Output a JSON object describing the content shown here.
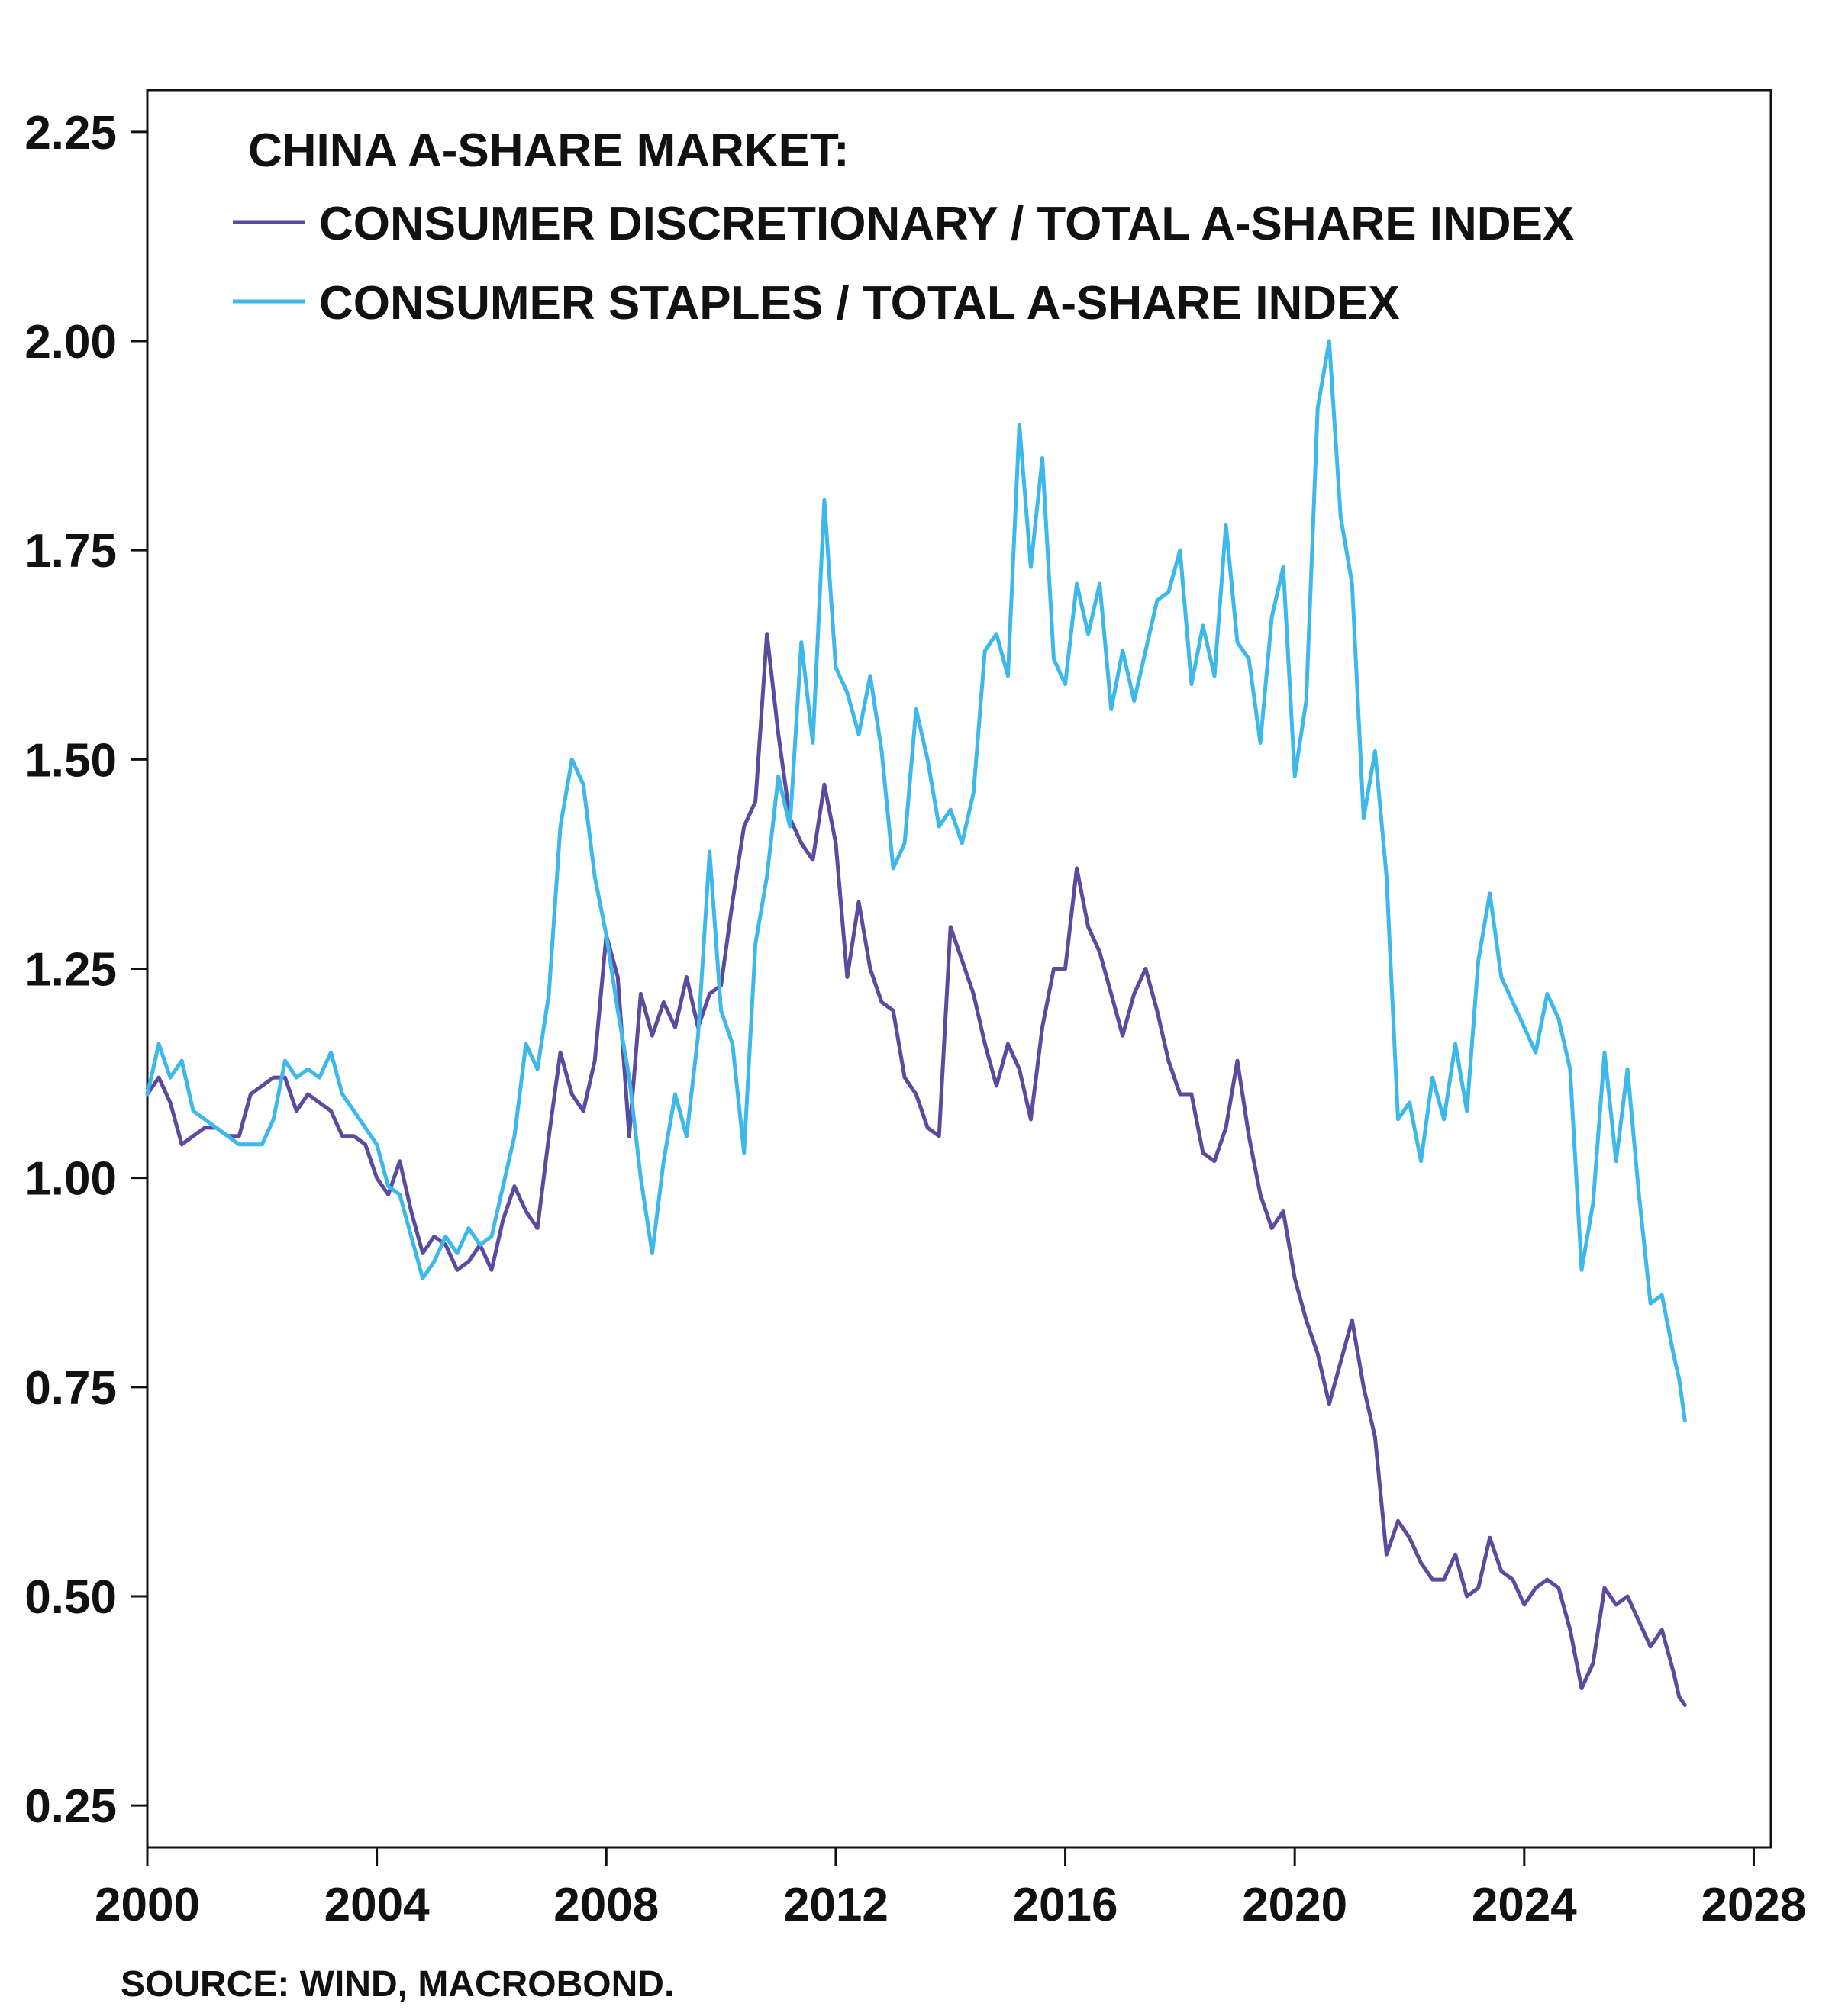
{
  "chart_data": {
    "type": "line",
    "legend_title": "CHINA A-SHARE MARKET:",
    "legend_position": "top-left",
    "source": "SOURCE: WIND, MACROBOND.",
    "xlim": [
      2000,
      2028.3
    ],
    "ylim": [
      0.2,
      2.3
    ],
    "x_ticks": [
      2000,
      2004,
      2008,
      2012,
      2016,
      2020,
      2024,
      2028
    ],
    "y_ticks": [
      "0.25",
      "0.50",
      "0.75",
      "1.00",
      "1.25",
      "1.50",
      "1.75",
      "2.00",
      "2.25"
    ],
    "grid": false,
    "series": [
      {
        "name": "CONSUMER DISCRETIONARY / TOTAL A-SHARE INDEX",
        "color": "#5b4a9e",
        "points": [
          [
            2000.0,
            1.1
          ],
          [
            2000.2,
            1.12
          ],
          [
            2000.4,
            1.09
          ],
          [
            2000.6,
            1.04
          ],
          [
            2000.8,
            1.05
          ],
          [
            2001.0,
            1.06
          ],
          [
            2001.2,
            1.06
          ],
          [
            2001.4,
            1.05
          ],
          [
            2001.6,
            1.05
          ],
          [
            2001.8,
            1.1
          ],
          [
            2002.0,
            1.11
          ],
          [
            2002.2,
            1.12
          ],
          [
            2002.4,
            1.12
          ],
          [
            2002.6,
            1.08
          ],
          [
            2002.8,
            1.1
          ],
          [
            2003.0,
            1.09
          ],
          [
            2003.2,
            1.08
          ],
          [
            2003.4,
            1.05
          ],
          [
            2003.6,
            1.05
          ],
          [
            2003.8,
            1.04
          ],
          [
            2004.0,
            1.0
          ],
          [
            2004.2,
            0.98
          ],
          [
            2004.4,
            1.02
          ],
          [
            2004.6,
            0.96
          ],
          [
            2004.8,
            0.91
          ],
          [
            2005.0,
            0.93
          ],
          [
            2005.2,
            0.92
          ],
          [
            2005.4,
            0.89
          ],
          [
            2005.6,
            0.9
          ],
          [
            2005.8,
            0.92
          ],
          [
            2006.0,
            0.89
          ],
          [
            2006.2,
            0.95
          ],
          [
            2006.4,
            0.99
          ],
          [
            2006.6,
            0.96
          ],
          [
            2006.8,
            0.94
          ],
          [
            2007.0,
            1.05
          ],
          [
            2007.2,
            1.15
          ],
          [
            2007.4,
            1.1
          ],
          [
            2007.6,
            1.08
          ],
          [
            2007.8,
            1.14
          ],
          [
            2008.0,
            1.29
          ],
          [
            2008.2,
            1.24
          ],
          [
            2008.4,
            1.05
          ],
          [
            2008.6,
            1.22
          ],
          [
            2008.8,
            1.17
          ],
          [
            2009.0,
            1.21
          ],
          [
            2009.2,
            1.18
          ],
          [
            2009.4,
            1.24
          ],
          [
            2009.6,
            1.18
          ],
          [
            2009.8,
            1.22
          ],
          [
            2010.0,
            1.23
          ],
          [
            2010.2,
            1.33
          ],
          [
            2010.4,
            1.42
          ],
          [
            2010.6,
            1.45
          ],
          [
            2010.8,
            1.65
          ],
          [
            2011.0,
            1.53
          ],
          [
            2011.2,
            1.43
          ],
          [
            2011.4,
            1.4
          ],
          [
            2011.6,
            1.38
          ],
          [
            2011.8,
            1.47
          ],
          [
            2012.0,
            1.4
          ],
          [
            2012.2,
            1.24
          ],
          [
            2012.4,
            1.33
          ],
          [
            2012.6,
            1.25
          ],
          [
            2012.8,
            1.21
          ],
          [
            2013.0,
            1.2
          ],
          [
            2013.2,
            1.12
          ],
          [
            2013.4,
            1.1
          ],
          [
            2013.6,
            1.06
          ],
          [
            2013.8,
            1.05
          ],
          [
            2014.0,
            1.3
          ],
          [
            2014.2,
            1.26
          ],
          [
            2014.4,
            1.22
          ],
          [
            2014.6,
            1.16
          ],
          [
            2014.8,
            1.11
          ],
          [
            2015.0,
            1.16
          ],
          [
            2015.2,
            1.13
          ],
          [
            2015.4,
            1.07
          ],
          [
            2015.6,
            1.18
          ],
          [
            2015.8,
            1.25
          ],
          [
            2016.0,
            1.25
          ],
          [
            2016.2,
            1.37
          ],
          [
            2016.4,
            1.3
          ],
          [
            2016.6,
            1.27
          ],
          [
            2016.8,
            1.22
          ],
          [
            2017.0,
            1.17
          ],
          [
            2017.2,
            1.22
          ],
          [
            2017.4,
            1.25
          ],
          [
            2017.6,
            1.2
          ],
          [
            2017.8,
            1.14
          ],
          [
            2018.0,
            1.1
          ],
          [
            2018.2,
            1.1
          ],
          [
            2018.4,
            1.03
          ],
          [
            2018.6,
            1.02
          ],
          [
            2018.8,
            1.06
          ],
          [
            2019.0,
            1.14
          ],
          [
            2019.2,
            1.05
          ],
          [
            2019.4,
            0.98
          ],
          [
            2019.6,
            0.94
          ],
          [
            2019.8,
            0.96
          ],
          [
            2020.0,
            0.88
          ],
          [
            2020.2,
            0.83
          ],
          [
            2020.4,
            0.79
          ],
          [
            2020.6,
            0.73
          ],
          [
            2020.8,
            0.78
          ],
          [
            2021.0,
            0.83
          ],
          [
            2021.2,
            0.75
          ],
          [
            2021.4,
            0.69
          ],
          [
            2021.6,
            0.55
          ],
          [
            2021.8,
            0.59
          ],
          [
            2022.0,
            0.57
          ],
          [
            2022.2,
            0.54
          ],
          [
            2022.4,
            0.52
          ],
          [
            2022.6,
            0.52
          ],
          [
            2022.8,
            0.55
          ],
          [
            2023.0,
            0.5
          ],
          [
            2023.2,
            0.51
          ],
          [
            2023.4,
            0.57
          ],
          [
            2023.6,
            0.53
          ],
          [
            2023.8,
            0.52
          ],
          [
            2024.0,
            0.49
          ],
          [
            2024.2,
            0.51
          ],
          [
            2024.4,
            0.52
          ],
          [
            2024.6,
            0.51
          ],
          [
            2024.8,
            0.46
          ],
          [
            2025.0,
            0.39
          ],
          [
            2025.2,
            0.42
          ],
          [
            2025.4,
            0.51
          ],
          [
            2025.6,
            0.49
          ],
          [
            2025.8,
            0.5
          ],
          [
            2026.0,
            0.47
          ],
          [
            2026.2,
            0.44
          ],
          [
            2026.4,
            0.46
          ],
          [
            2026.6,
            0.41
          ],
          [
            2026.7,
            0.38
          ],
          [
            2026.8,
            0.37
          ]
        ]
      },
      {
        "name": "CONSUMER STAPLES / TOTAL A-SHARE INDEX",
        "color": "#3db8ea",
        "points": [
          [
            2000.0,
            1.1
          ],
          [
            2000.2,
            1.16
          ],
          [
            2000.4,
            1.12
          ],
          [
            2000.6,
            1.14
          ],
          [
            2000.8,
            1.08
          ],
          [
            2001.0,
            1.07
          ],
          [
            2001.2,
            1.06
          ],
          [
            2001.4,
            1.05
          ],
          [
            2001.6,
            1.04
          ],
          [
            2001.8,
            1.04
          ],
          [
            2002.0,
            1.04
          ],
          [
            2002.2,
            1.07
          ],
          [
            2002.4,
            1.14
          ],
          [
            2002.6,
            1.12
          ],
          [
            2002.8,
            1.13
          ],
          [
            2003.0,
            1.12
          ],
          [
            2003.2,
            1.15
          ],
          [
            2003.4,
            1.1
          ],
          [
            2003.6,
            1.08
          ],
          [
            2003.8,
            1.06
          ],
          [
            2004.0,
            1.04
          ],
          [
            2004.2,
            0.99
          ],
          [
            2004.4,
            0.98
          ],
          [
            2004.6,
            0.93
          ],
          [
            2004.8,
            0.88
          ],
          [
            2005.0,
            0.9
          ],
          [
            2005.2,
            0.93
          ],
          [
            2005.4,
            0.91
          ],
          [
            2005.6,
            0.94
          ],
          [
            2005.8,
            0.92
          ],
          [
            2006.0,
            0.93
          ],
          [
            2006.2,
            0.99
          ],
          [
            2006.4,
            1.05
          ],
          [
            2006.6,
            1.16
          ],
          [
            2006.8,
            1.13
          ],
          [
            2007.0,
            1.22
          ],
          [
            2007.2,
            1.42
          ],
          [
            2007.4,
            1.5
          ],
          [
            2007.6,
            1.47
          ],
          [
            2007.8,
            1.36
          ],
          [
            2008.0,
            1.29
          ],
          [
            2008.2,
            1.2
          ],
          [
            2008.4,
            1.12
          ],
          [
            2008.6,
            1.0
          ],
          [
            2008.8,
            0.91
          ],
          [
            2009.0,
            1.02
          ],
          [
            2009.2,
            1.1
          ],
          [
            2009.4,
            1.05
          ],
          [
            2009.6,
            1.17
          ],
          [
            2009.8,
            1.39
          ],
          [
            2010.0,
            1.2
          ],
          [
            2010.2,
            1.16
          ],
          [
            2010.4,
            1.03
          ],
          [
            2010.6,
            1.28
          ],
          [
            2010.8,
            1.36
          ],
          [
            2011.0,
            1.48
          ],
          [
            2011.2,
            1.42
          ],
          [
            2011.4,
            1.64
          ],
          [
            2011.6,
            1.52
          ],
          [
            2011.8,
            1.81
          ],
          [
            2012.0,
            1.61
          ],
          [
            2012.2,
            1.58
          ],
          [
            2012.4,
            1.53
          ],
          [
            2012.6,
            1.6
          ],
          [
            2012.8,
            1.51
          ],
          [
            2013.0,
            1.37
          ],
          [
            2013.2,
            1.4
          ],
          [
            2013.4,
            1.56
          ],
          [
            2013.6,
            1.5
          ],
          [
            2013.8,
            1.42
          ],
          [
            2014.0,
            1.44
          ],
          [
            2014.2,
            1.4
          ],
          [
            2014.4,
            1.46
          ],
          [
            2014.6,
            1.63
          ],
          [
            2014.8,
            1.65
          ],
          [
            2015.0,
            1.6
          ],
          [
            2015.2,
            1.9
          ],
          [
            2015.4,
            1.73
          ],
          [
            2015.6,
            1.86
          ],
          [
            2015.8,
            1.62
          ],
          [
            2016.0,
            1.59
          ],
          [
            2016.2,
            1.71
          ],
          [
            2016.4,
            1.65
          ],
          [
            2016.6,
            1.71
          ],
          [
            2016.8,
            1.56
          ],
          [
            2017.0,
            1.63
          ],
          [
            2017.2,
            1.57
          ],
          [
            2017.4,
            1.63
          ],
          [
            2017.6,
            1.69
          ],
          [
            2017.8,
            1.7
          ],
          [
            2018.0,
            1.75
          ],
          [
            2018.2,
            1.59
          ],
          [
            2018.4,
            1.66
          ],
          [
            2018.6,
            1.6
          ],
          [
            2018.8,
            1.78
          ],
          [
            2019.0,
            1.64
          ],
          [
            2019.2,
            1.62
          ],
          [
            2019.4,
            1.52
          ],
          [
            2019.6,
            1.67
          ],
          [
            2019.8,
            1.73
          ],
          [
            2020.0,
            1.48
          ],
          [
            2020.2,
            1.57
          ],
          [
            2020.4,
            1.92
          ],
          [
            2020.6,
            2.0
          ],
          [
            2020.8,
            1.79
          ],
          [
            2021.0,
            1.71
          ],
          [
            2021.2,
            1.43
          ],
          [
            2021.4,
            1.51
          ],
          [
            2021.6,
            1.36
          ],
          [
            2021.8,
            1.07
          ],
          [
            2022.0,
            1.09
          ],
          [
            2022.2,
            1.02
          ],
          [
            2022.4,
            1.12
          ],
          [
            2022.6,
            1.07
          ],
          [
            2022.8,
            1.16
          ],
          [
            2023.0,
            1.08
          ],
          [
            2023.2,
            1.26
          ],
          [
            2023.4,
            1.34
          ],
          [
            2023.6,
            1.24
          ],
          [
            2023.8,
            1.21
          ],
          [
            2024.0,
            1.18
          ],
          [
            2024.2,
            1.15
          ],
          [
            2024.4,
            1.22
          ],
          [
            2024.6,
            1.19
          ],
          [
            2024.8,
            1.13
          ],
          [
            2025.0,
            0.89
          ],
          [
            2025.2,
            0.97
          ],
          [
            2025.4,
            1.15
          ],
          [
            2025.6,
            1.02
          ],
          [
            2025.8,
            1.13
          ],
          [
            2026.0,
            0.98
          ],
          [
            2026.2,
            0.85
          ],
          [
            2026.4,
            0.86
          ],
          [
            2026.6,
            0.79
          ],
          [
            2026.7,
            0.76
          ],
          [
            2026.8,
            0.71
          ]
        ]
      }
    ]
  }
}
